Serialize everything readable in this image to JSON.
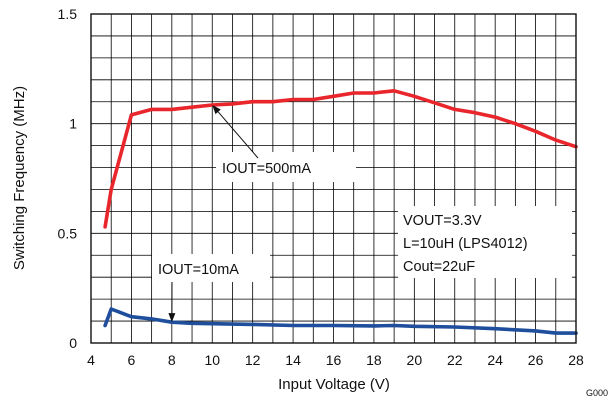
{
  "chart_data": {
    "type": "line",
    "xlabel": "Input Voltage (V)",
    "ylabel": "Switching Frequency (MHz)",
    "xlim": [
      4,
      28
    ],
    "ylim": [
      0,
      1.5
    ],
    "x_ticks": [
      "4",
      "6",
      "8",
      "10",
      "12",
      "14",
      "16",
      "18",
      "20",
      "22",
      "24",
      "26",
      "28"
    ],
    "y_ticks": [
      "0",
      "0.5",
      "1",
      "1.5"
    ],
    "y_tick_values": [
      0,
      0.5,
      1,
      1.5
    ],
    "grid": true,
    "series": [
      {
        "name": "IOUT=500mA",
        "color": "#e8262b",
        "x": [
          4.7,
          5.0,
          6.0,
          7.0,
          8.0,
          9.0,
          10.0,
          11.0,
          12.0,
          13.0,
          14.0,
          15.0,
          16.0,
          17.0,
          18.0,
          19.0,
          20.0,
          21.0,
          22.0,
          23.0,
          24.0,
          25.0,
          26.0,
          27.0,
          28.0
        ],
        "y": [
          0.53,
          0.7,
          1.04,
          1.065,
          1.065,
          1.075,
          1.085,
          1.09,
          1.1,
          1.1,
          1.11,
          1.11,
          1.125,
          1.14,
          1.14,
          1.15,
          1.125,
          1.095,
          1.065,
          1.05,
          1.03,
          1.0,
          0.965,
          0.925,
          0.895
        ]
      },
      {
        "name": "IOUT=10mA",
        "color": "#1f4e9c",
        "x": [
          4.7,
          5.0,
          6.0,
          7.0,
          8.0,
          9.0,
          10.0,
          12.0,
          14.0,
          16.0,
          18.0,
          19.0,
          20.0,
          22.0,
          24.0,
          26.0,
          27.0,
          28.0
        ],
        "y": [
          0.08,
          0.155,
          0.12,
          0.11,
          0.095,
          0.09,
          0.088,
          0.085,
          0.08,
          0.08,
          0.078,
          0.08,
          0.076,
          0.073,
          0.065,
          0.055,
          0.045,
          0.045
        ]
      }
    ],
    "annotations": [
      {
        "text": "IOUT=500mA",
        "arrow_to": [
          10.0,
          1.085
        ]
      },
      {
        "text": "IOUT=10mA",
        "arrow_to": [
          8.0,
          0.095
        ]
      }
    ],
    "conditions": [
      "VOUT=3.3V",
      "L=10uH (LPS4012)",
      "Cout=22uF"
    ],
    "figure_code": "G000"
  }
}
